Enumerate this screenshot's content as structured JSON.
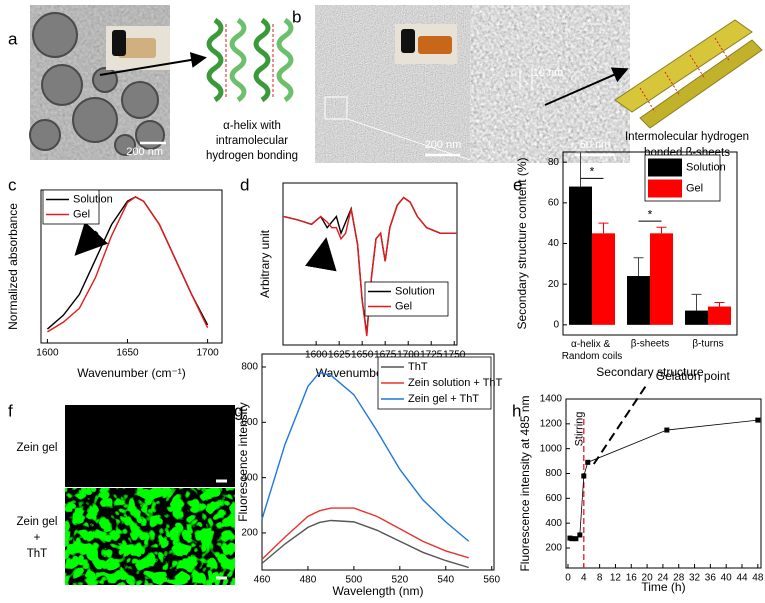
{
  "figure": {
    "panel_labels": [
      "a",
      "b",
      "c",
      "d",
      "e",
      "f",
      "g",
      "h"
    ],
    "panel_a": {
      "scale_bar": "200 nm",
      "caption": [
        "α-helix with",
        "intramolecular",
        "hydrogen bonding"
      ]
    },
    "panel_b": {
      "scale_bar_left": "200 nm",
      "scale_bar_right": "50 nm",
      "spacing": "10 nm",
      "caption": [
        "Intermolecular hydrogen",
        "bonded β-sheets"
      ]
    },
    "panel_f": {
      "top_label": "Zein gel",
      "bottom_label": [
        "Zein gel",
        "+",
        "ThT"
      ]
    }
  },
  "chart_data": [
    {
      "type": "line",
      "xlabel": "Wavenumber (cm⁻¹)",
      "ylabel": "Normalized absorbance",
      "x": [
        1600,
        1610,
        1620,
        1630,
        1640,
        1650,
        1655,
        1660,
        1670,
        1680,
        1690,
        1700
      ],
      "series": [
        {
          "name": "Solution",
          "color": "#000000",
          "values": [
            0.05,
            0.15,
            0.3,
            0.55,
            0.8,
            0.97,
            1.0,
            0.97,
            0.8,
            0.55,
            0.3,
            0.08
          ]
        },
        {
          "name": "Gel",
          "color": "#e41a1c",
          "values": [
            0.03,
            0.1,
            0.2,
            0.42,
            0.72,
            0.96,
            1.0,
            0.97,
            0.8,
            0.55,
            0.3,
            0.06
          ]
        }
      ],
      "xlim": [
        1596,
        1709
      ],
      "ylim": [
        -0.05,
        1.05
      ],
      "xticks": [
        1600,
        1650,
        1700
      ],
      "legend": "upper left"
    },
    {
      "type": "line",
      "xlabel": "Wavenumber (cm⁻¹)",
      "ylabel": "Arbitrary unit",
      "x": [
        1565,
        1580,
        1595,
        1605,
        1612,
        1617,
        1622,
        1627,
        1632,
        1638,
        1645,
        1650,
        1655,
        1660,
        1665,
        1670,
        1675,
        1680,
        1688,
        1695,
        1702,
        1710,
        1720,
        1735,
        1752
      ],
      "series": [
        {
          "name": "Solution",
          "color": "#000000",
          "values": [
            0.05,
            0.02,
            -0.02,
            0.05,
            -0.05,
            0.0,
            0.05,
            -0.1,
            0.0,
            0.12,
            -0.2,
            -0.7,
            -1.0,
            -0.5,
            -0.15,
            -0.1,
            -0.35,
            -0.05,
            0.15,
            0.22,
            0.18,
            0.05,
            -0.05,
            -0.1,
            -0.1
          ]
        },
        {
          "name": "Gel",
          "color": "#e41a1c",
          "values": [
            0.05,
            0.02,
            -0.02,
            0.05,
            0.0,
            -0.05,
            -0.05,
            -0.15,
            -0.1,
            0.12,
            -0.2,
            -0.7,
            -1.02,
            -0.5,
            -0.15,
            -0.1,
            -0.35,
            -0.05,
            0.15,
            0.22,
            0.18,
            0.05,
            -0.05,
            -0.1,
            -0.1
          ]
        }
      ],
      "xlim": [
        1564,
        1753
      ],
      "ylim": [
        -1.1,
        0.35
      ],
      "xticks": [
        1600,
        1625,
        1650,
        1675,
        1700,
        1725,
        1750
      ],
      "legend": "lower right"
    },
    {
      "type": "bar",
      "xlabel": "Secondary structure",
      "ylabel": "Secondary structure content (%)",
      "categories": [
        "α-helix & Random coils",
        "β-sheets",
        "β-turns"
      ],
      "series": [
        {
          "name": "Solution",
          "color": "#000000",
          "values": [
            68,
            24,
            7
          ],
          "errors": [
            17,
            9,
            8
          ]
        },
        {
          "name": "Gel",
          "color": "#ff0000",
          "values": [
            45,
            45,
            9
          ],
          "errors": [
            5,
            3,
            2
          ]
        }
      ],
      "ylim": [
        -5,
        85
      ],
      "yticks": [
        0,
        20,
        40,
        60,
        80
      ],
      "annotations": [
        "*",
        "*"
      ],
      "legend": "upper right"
    },
    {
      "type": "line",
      "xlabel": "Wavelength (nm)",
      "ylabel": "Fluorescence intensity",
      "x": [
        460,
        470,
        480,
        485,
        490,
        500,
        510,
        520,
        530,
        540,
        550
      ],
      "series": [
        {
          "name": "ThT",
          "color": "#555555",
          "values": [
            90,
            160,
            220,
            238,
            245,
            240,
            210,
            170,
            130,
            100,
            75
          ]
        },
        {
          "name": "Zein solution + ThT",
          "color": "#e8322e",
          "values": [
            105,
            185,
            260,
            280,
            290,
            290,
            260,
            215,
            170,
            135,
            110
          ]
        },
        {
          "name": "Zein gel + ThT",
          "color": "#1f77e0",
          "values": [
            250,
            520,
            730,
            780,
            770,
            700,
            570,
            430,
            320,
            240,
            170
          ]
        }
      ],
      "xlim": [
        460,
        561
      ],
      "ylim": [
        66,
        847
      ],
      "xticks": [
        460,
        480,
        500,
        520,
        540,
        560
      ],
      "yticks": [
        200,
        400,
        600,
        800
      ],
      "legend": "upper right"
    },
    {
      "type": "line",
      "xlabel": "Time (h)",
      "ylabel": "Fluorescence intensity at 485 nm",
      "x": [
        0.5,
        1,
        2,
        3,
        4,
        5,
        25,
        48
      ],
      "series": [
        {
          "name": "Fluorescence",
          "color": "#000000",
          "values": [
            280,
            275,
            275,
            305,
            780,
            890,
            1150,
            1230
          ]
        }
      ],
      "markers": true,
      "vline": 4,
      "vline_color": "#e41a1c",
      "annotations": [
        "Stirring",
        "Gelation point"
      ],
      "xlim": [
        -0.5,
        48.8
      ],
      "ylim": [
        39,
        1400
      ],
      "xticks": [
        0,
        4,
        8,
        12,
        16,
        20,
        24,
        28,
        32,
        36,
        40,
        44,
        48
      ],
      "yticks": [
        200,
        400,
        600,
        800,
        1000,
        1200,
        1400
      ]
    }
  ]
}
